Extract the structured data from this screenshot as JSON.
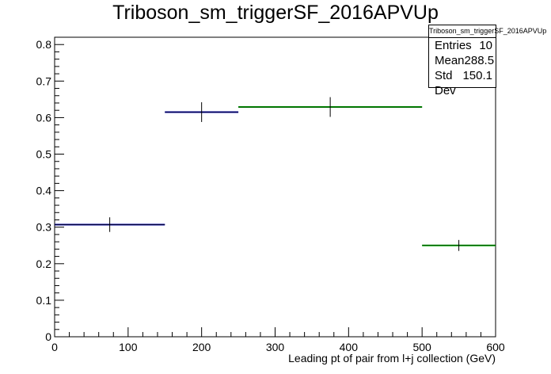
{
  "title": "Triboson_sm_triggerSF_2016APVUp",
  "stats": {
    "name": "Triboson_sm_triggerSF_2016APVUp",
    "rows": [
      {
        "label": "Entries",
        "value": "10"
      },
      {
        "label": "Mean",
        "value": "288.5"
      },
      {
        "label": "Std Dev",
        "value": "150.1"
      }
    ]
  },
  "chart_data": {
    "type": "histogram",
    "title": "Triboson_sm_triggerSF_2016APVUp",
    "xlabel": "Leading pt of pair from l+j collection (GeV)",
    "ylabel": "",
    "xlim": [
      0,
      600
    ],
    "ylim": [
      0,
      0.82
    ],
    "x_ticks": [
      0,
      100,
      200,
      300,
      400,
      500,
      600
    ],
    "y_ticks": [
      0,
      0.1,
      0.2,
      0.3,
      0.4,
      0.5,
      0.6,
      0.7,
      0.8
    ],
    "x_tick_labels": [
      "0",
      "100",
      "200",
      "300",
      "400",
      "500",
      "600"
    ],
    "y_tick_labels": [
      "0",
      "0.1",
      "0.2",
      "0.3",
      "0.4",
      "0.5",
      "0.6",
      "0.7",
      "0.8"
    ],
    "bins": [
      {
        "x_low": 0,
        "x_high": 150,
        "x_center": 75,
        "y": 0.307,
        "y_err": 0.02,
        "color": "#000099"
      },
      {
        "x_low": 150,
        "x_high": 250,
        "x_center": 200,
        "y": 0.615,
        "y_err": 0.027,
        "color": "#000099"
      },
      {
        "x_low": 250,
        "x_high": 500,
        "x_center": 375,
        "y": 0.629,
        "y_err": 0.027,
        "color": "#00aa00"
      },
      {
        "x_low": 500,
        "x_high": 600,
        "x_center": 550,
        "y": 0.25,
        "y_err": 0.015,
        "color": "#00aa00"
      }
    ],
    "grid": false,
    "legend": "top-right"
  }
}
